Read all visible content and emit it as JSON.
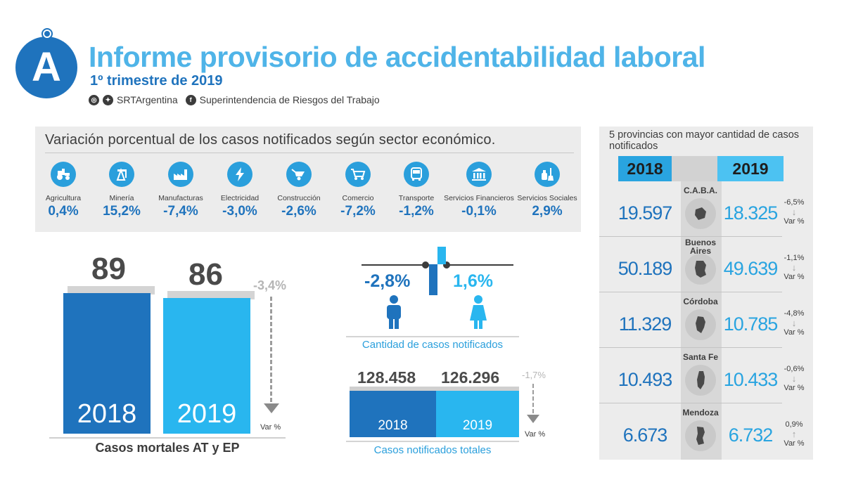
{
  "header": {
    "logo_letter": "A",
    "title": "Informe provisorio de accidentabilidad laboral",
    "subtitle": "1º trimestre de 2019",
    "social_handle": "SRTArgentina",
    "facebook_name": "Superintendencia de Riesgos del Trabajo"
  },
  "sectors": {
    "title": "Variación porcentual de los casos notificados según sector económico.",
    "items": [
      {
        "name": "Agricultura",
        "value": "0,4%",
        "icon": "tractor-icon"
      },
      {
        "name": "Minería",
        "value": "15,2%",
        "icon": "oil-pump-icon"
      },
      {
        "name": "Manufacturas",
        "value": "-7,4%",
        "icon": "factory-icon"
      },
      {
        "name": "Electricidad",
        "value": "-3,0%",
        "icon": "lightning-icon"
      },
      {
        "name": "Construcción",
        "value": "-2,6%",
        "icon": "wheelbarrow-icon"
      },
      {
        "name": "Comercio",
        "value": "-7,2%",
        "icon": "shopping-cart-icon"
      },
      {
        "name": "Transporte",
        "value": "-1,2%",
        "icon": "bus-icon"
      },
      {
        "name": "Servicios Financieros",
        "value": "-0,1%",
        "icon": "bank-icon"
      },
      {
        "name": "Servicios Sociales",
        "value": "2,9%",
        "icon": "cleaning-icon"
      }
    ]
  },
  "mortal": {
    "value_2018": "89",
    "value_2019": "86",
    "year_2018": "2018",
    "year_2019": "2019",
    "variation": "-3,4%",
    "var_label": "Var %",
    "caption": "Casos mortales AT y EP",
    "chart_data": {
      "type": "bar",
      "categories": [
        "2018",
        "2019"
      ],
      "values": [
        89,
        86
      ]
    }
  },
  "gender": {
    "male_variation": "-2,8%",
    "female_variation": "1,6%",
    "caption": "Cantidad de casos notificados"
  },
  "totals": {
    "value_2018": "128.458",
    "value_2019": "126.296",
    "year_2018": "2018",
    "year_2019": "2019",
    "variation": "-1,7%",
    "var_label": "Var %",
    "caption": "Casos notificados totales",
    "chart_data": {
      "type": "bar",
      "categories": [
        "2018",
        "2019"
      ],
      "values": [
        128458,
        126296
      ]
    }
  },
  "provinces": {
    "title": "5 provincias con mayor cantidad de casos notificados",
    "header_2018": "2018",
    "header_2019": "2019",
    "var_label": "Var %",
    "rows": [
      {
        "name": "C.A.B.A.",
        "v2018": "19.597",
        "v2019": "18.325",
        "variation": "-6,5%",
        "direction": "↓"
      },
      {
        "name": "Buenos Aires",
        "v2018": "50.189",
        "v2019": "49.639",
        "variation": "-1,1%",
        "direction": "↓"
      },
      {
        "name": "Córdoba",
        "v2018": "11.329",
        "v2019": "10.785",
        "variation": "-4,8%",
        "direction": "↓"
      },
      {
        "name": "Santa Fe",
        "v2018": "10.493",
        "v2019": "10.433",
        "variation": "-0,6%",
        "direction": "↓"
      },
      {
        "name": "Mendoza",
        "v2018": "6.673",
        "v2019": "6.732",
        "variation": "0,9%",
        "direction": "↑"
      }
    ]
  },
  "colors": {
    "dark_blue": "#1f73bd",
    "light_blue": "#29b6ef",
    "title_blue": "#4fb4e8",
    "panel_gray": "#ececec"
  }
}
